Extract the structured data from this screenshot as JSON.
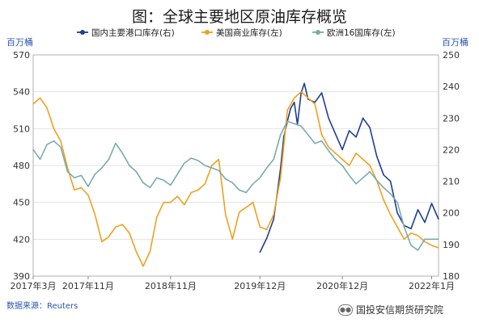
{
  "title": "图：全球主要地区原油库存概览",
  "source_label": "数据来源：Reuters",
  "watermark": "国投安信期货研究院",
  "colors": {
    "port": "#1f3f8f",
    "us": "#f0a020",
    "eu": "#7aaab0",
    "unit": "#2a55b0",
    "grid": "#e3e3e3"
  },
  "chart_data": {
    "type": "line",
    "left_unit": "百万桶",
    "right_unit": "百万桶",
    "left_ticks": [
      "570",
      "540",
      "510",
      "480",
      "450",
      "420",
      "390"
    ],
    "right_ticks": [
      "250",
      "240",
      "230",
      "220",
      "210",
      "200",
      "190",
      "180"
    ],
    "ylim_left": [
      390,
      570
    ],
    "ylim_right": [
      180,
      250
    ],
    "xlim": [
      "2017-03",
      "2022-02"
    ],
    "x_ticks": [
      {
        "label": "2017年3月",
        "x": "2017-03"
      },
      {
        "label": "2017年11月",
        "x": "2017-11"
      },
      {
        "label": "2018年11月",
        "x": "2018-11"
      },
      {
        "label": "2019年12月",
        "x": "2019-12"
      },
      {
        "label": "2020年12月",
        "x": "2020-12"
      },
      {
        "label": "2022年1月",
        "x": "2022-01"
      }
    ],
    "series": [
      {
        "name": "国内主要港口库存(右)",
        "axis": "right",
        "color": "#1f3f8f",
        "x": [
          "2019-12",
          "2020-01",
          "2020-02",
          "2020-02-20",
          "2020-03",
          "2020-03-15",
          "2020-04",
          "2020-04-15",
          "2020-05",
          "2020-05-15",
          "2020-06",
          "2020-06-15",
          "2020-07",
          "2020-08",
          "2020-09",
          "2020-10",
          "2020-11",
          "2020-12",
          "2021-01",
          "2021-02",
          "2021-03",
          "2021-04",
          "2021-05",
          "2021-06",
          "2021-07",
          "2021-08",
          "2021-09",
          "2021-10",
          "2021-11",
          "2021-12",
          "2022-01",
          "2022-02"
        ],
        "values": [
          187.5,
          192,
          198,
          208,
          214,
          224,
          229,
          233,
          235,
          228,
          238,
          241,
          236,
          235,
          238,
          230,
          225,
          220,
          226,
          224,
          230,
          227,
          218,
          212,
          210,
          200,
          196,
          195,
          201,
          197,
          203,
          198
        ]
      },
      {
        "name": "美国商业库存(左)",
        "axis": "left",
        "color": "#f0a020",
        "x": [
          "2017-03",
          "2017-04",
          "2017-05",
          "2017-06",
          "2017-07",
          "2017-08",
          "2017-09",
          "2017-10",
          "2017-11",
          "2017-12",
          "2018-01",
          "2018-02",
          "2018-03",
          "2018-04",
          "2018-05",
          "2018-06",
          "2018-07",
          "2018-08",
          "2018-09",
          "2018-10",
          "2018-11",
          "2018-12",
          "2019-01",
          "2019-02",
          "2019-03",
          "2019-04",
          "2019-05",
          "2019-06",
          "2019-07",
          "2019-08",
          "2019-09",
          "2019-10",
          "2019-11",
          "2019-12",
          "2020-01",
          "2020-02",
          "2020-03",
          "2020-04",
          "2020-05",
          "2020-06",
          "2020-07",
          "2020-08",
          "2020-09",
          "2020-10",
          "2020-11",
          "2020-12",
          "2021-01",
          "2021-02",
          "2021-03",
          "2021-04",
          "2021-05",
          "2021-06",
          "2021-07",
          "2021-08",
          "2021-09",
          "2021-10",
          "2021-11",
          "2021-12",
          "2022-01",
          "2022-02"
        ],
        "values": [
          530,
          535,
          527,
          510,
          500,
          478,
          460,
          462,
          456,
          440,
          418,
          422,
          430,
          432,
          425,
          410,
          398,
          410,
          438,
          450,
          450,
          455,
          448,
          458,
          460,
          465,
          480,
          485,
          440,
          420,
          442,
          446,
          450,
          430,
          428,
          440,
          470,
          525,
          535,
          540,
          535,
          530,
          505,
          495,
          490,
          485,
          480,
          490,
          485,
          480,
          468,
          452,
          440,
          430,
          420,
          425,
          423,
          418,
          415,
          413
        ]
      },
      {
        "name": "欧洲16国库存(左)",
        "axis": "left",
        "color": "#7aaab0",
        "x": [
          "2017-03",
          "2017-04",
          "2017-05",
          "2017-06",
          "2017-07",
          "2017-08",
          "2017-09",
          "2017-10",
          "2017-11",
          "2017-12",
          "2018-01",
          "2018-02",
          "2018-03",
          "2018-04",
          "2018-05",
          "2018-06",
          "2018-07",
          "2018-08",
          "2018-09",
          "2018-10",
          "2018-11",
          "2018-12",
          "2019-01",
          "2019-02",
          "2019-03",
          "2019-04",
          "2019-05",
          "2019-06",
          "2019-07",
          "2019-08",
          "2019-09",
          "2019-10",
          "2019-11",
          "2019-12",
          "2020-01",
          "2020-02",
          "2020-03",
          "2020-04",
          "2020-05",
          "2020-06",
          "2020-07",
          "2020-08",
          "2020-09",
          "2020-10",
          "2020-11",
          "2020-12",
          "2021-01",
          "2021-02",
          "2021-03",
          "2021-04",
          "2021-05",
          "2021-06",
          "2021-07",
          "2021-08",
          "2021-09",
          "2021-10",
          "2021-11",
          "2021-12",
          "2022-01",
          "2022-02"
        ],
        "values": [
          493,
          485,
          497,
          500,
          495,
          475,
          470,
          472,
          463,
          473,
          478,
          485,
          498,
          490,
          480,
          475,
          466,
          462,
          470,
          468,
          464,
          473,
          482,
          486,
          484,
          480,
          478,
          476,
          469,
          466,
          460,
          458,
          465,
          470,
          478,
          485,
          505,
          516,
          514,
          512,
          505,
          498,
          500,
          492,
          485,
          480,
          472,
          465,
          470,
          475,
          468,
          462,
          457,
          450,
          430,
          415,
          411,
          420,
          420,
          420
        ]
      }
    ]
  }
}
